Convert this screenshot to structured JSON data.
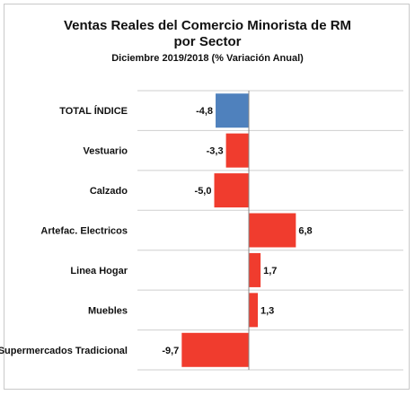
{
  "chart_data": {
    "type": "bar",
    "orientation": "horizontal",
    "title": "Ventas Reales del Comercio Minorista de RM",
    "title_line2": "por Sector",
    "subtitle": "Diciembre 2019/2018 (% Variación Anual)",
    "categories": [
      "TOTAL ÍNDICE",
      "Vestuario",
      "Calzado",
      "Artefac. Electricos",
      "Linea Hogar",
      "Muebles",
      "L.Supermercados Tradicional"
    ],
    "values": [
      -4.8,
      -3.3,
      -5.0,
      6.8,
      1.7,
      1.3,
      -9.7
    ],
    "value_labels": [
      "-4,8",
      "-3,3",
      "-5,0",
      "6,8",
      "1,7",
      "1,3",
      "-9,7"
    ],
    "xlim": [
      -12,
      12
    ],
    "colors": {
      "total": "#4f81bd",
      "sector": "#f03c2e",
      "gridline": "#cfcfcf",
      "axis": "#888888"
    },
    "grid": true,
    "legend": "none"
  }
}
